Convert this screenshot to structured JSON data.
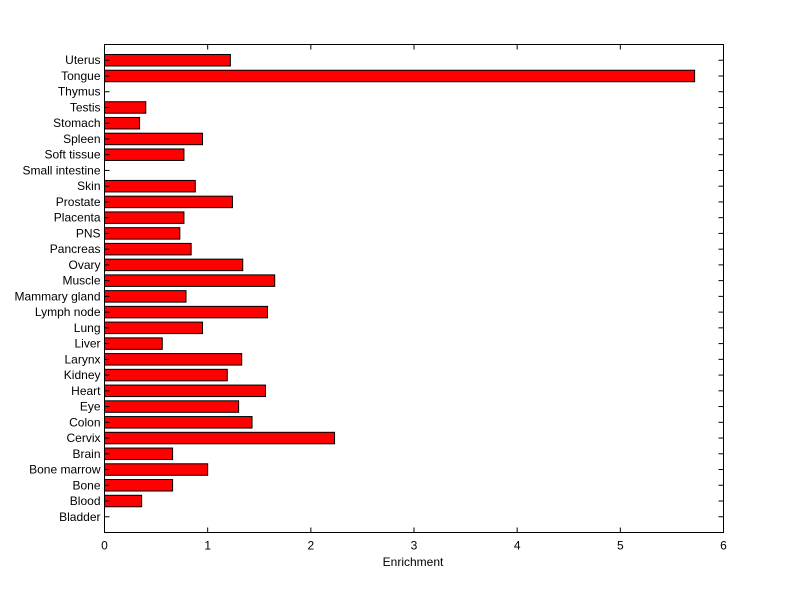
{
  "chart_data": {
    "type": "bar",
    "orientation": "horizontal",
    "xlabel": "Enrichment",
    "ylabel": "",
    "title": "",
    "xlim": [
      0,
      6
    ],
    "xticks": [
      "0",
      "1",
      "2",
      "3",
      "4",
      "5",
      "6"
    ],
    "grid": false,
    "bar_color": "#ff0000",
    "categories": [
      "Uterus",
      "Tongue",
      "Thymus",
      "Testis",
      "Stomach",
      "Spleen",
      "Soft tissue",
      "Small intestine",
      "Skin",
      "Prostate",
      "Placenta",
      "PNS",
      "Pancreas",
      "Ovary",
      "Muscle",
      "Mammary gland",
      "Lymph node",
      "Lung",
      "Liver",
      "Larynx",
      "Kidney",
      "Heart",
      "Eye",
      "Colon",
      "Cervix",
      "Brain",
      "Bone marrow",
      "Bone",
      "Blood",
      "Bladder"
    ],
    "values": [
      1.22,
      5.72,
      0,
      0.4,
      0.34,
      0.95,
      0.77,
      0,
      0.88,
      1.24,
      0.77,
      0.73,
      0.84,
      1.34,
      1.65,
      0.79,
      1.58,
      0.95,
      0.56,
      1.33,
      1.19,
      1.56,
      1.3,
      1.43,
      2.23,
      0.66,
      1.0,
      0.66,
      0.36,
      0
    ]
  }
}
